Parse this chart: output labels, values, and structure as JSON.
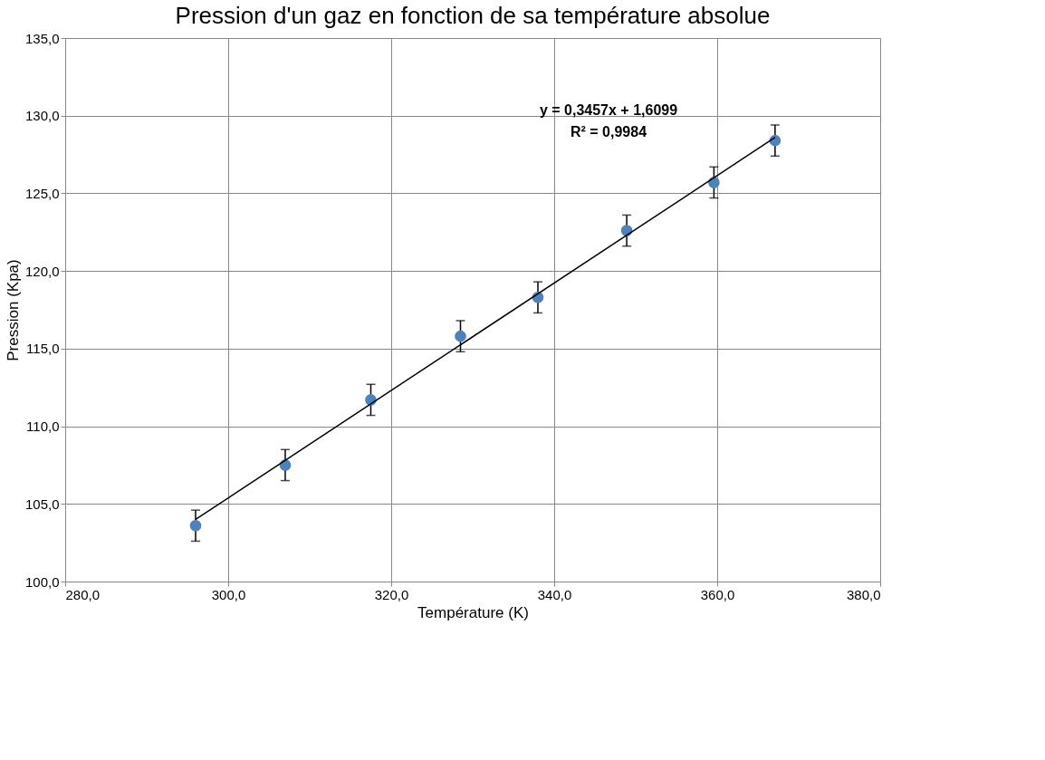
{
  "chart_data": {
    "type": "scatter",
    "title": "Pression d'un gaz en fonction de sa température absolue",
    "xlabel": "Température (K)",
    "ylabel": "Pression (Kpa)",
    "x": [
      296.0,
      307.0,
      317.5,
      328.5,
      338.0,
      348.9,
      359.6,
      367.1
    ],
    "series": [
      {
        "color": "#4f81bd",
        "values": [
          103.6,
          107.5,
          111.7,
          115.8,
          118.3,
          122.6,
          125.7,
          128.4
        ],
        "errors": [
          1,
          1,
          1,
          1,
          1,
          1,
          1,
          1
        ],
        "marker": "circle"
      },
      {
        "type": "line",
        "color": "#000000",
        "x": [
          296.0,
          367.1
        ],
        "values": [
          104.0,
          128.6
        ],
        "line_style": "solid"
      }
    ],
    "annotations": [
      "y = 0,3457x + 1,6099",
      "R² = 0,9984"
    ],
    "xlim": [
      280,
      380
    ],
    "ylim": [
      100,
      135
    ],
    "xticks": [
      {
        "value": 280,
        "label": "280,0"
      },
      {
        "value": 300,
        "label": "300,0"
      },
      {
        "value": 320,
        "label": "320,0"
      },
      {
        "value": 340,
        "label": "340,0"
      },
      {
        "value": 360,
        "label": "360,0"
      },
      {
        "value": 380,
        "label": "380,0"
      }
    ],
    "yticks": [
      {
        "value": 100,
        "label": "100,0"
      },
      {
        "value": 105,
        "label": "105,0"
      },
      {
        "value": 110,
        "label": "110,0"
      },
      {
        "value": 115,
        "label": "115,0"
      },
      {
        "value": 120,
        "label": "120,0"
      },
      {
        "value": 125,
        "label": "125,0"
      },
      {
        "value": 130,
        "label": "130,0"
      },
      {
        "value": 135,
        "label": "135,0"
      }
    ],
    "grid": true
  }
}
